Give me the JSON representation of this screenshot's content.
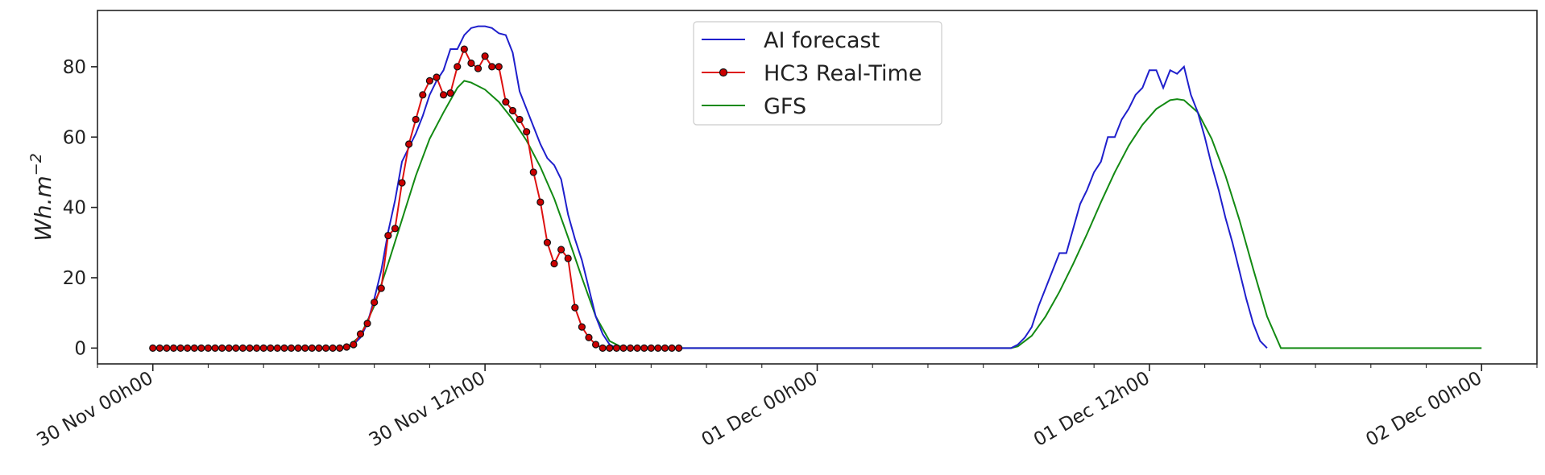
{
  "chart_data": {
    "type": "line",
    "title": "",
    "xlabel": "",
    "ylabel": "Wh.m",
    "ylabel_superscript": "−2",
    "x_unit": "hour",
    "x_range": [
      "29 Nov 22h00",
      "02 Dec 02h00"
    ],
    "ylim": [
      -4.5,
      96
    ],
    "yticks": [
      0,
      20,
      40,
      60,
      80
    ],
    "xticks": [
      {
        "x": "30 Nov 00h00",
        "label": "30 Nov 00h00"
      },
      {
        "x": "30 Nov 12h00",
        "label": "30 Nov 12h00"
      },
      {
        "x": "01 Dec 00h00",
        "label": "01 Dec 00h00"
      },
      {
        "x": "01 Dec 12h00",
        "label": "01 Dec 12h00"
      },
      {
        "x": "02 Dec 00h00",
        "label": "02 Dec 00h00"
      }
    ],
    "grid": false,
    "legend_position": "top-center",
    "series": [
      {
        "name": "AI forecast",
        "color": "#1f1fcc",
        "marker": "none",
        "points": [
          [
            "30 Nov 07h00",
            0
          ],
          [
            "30 Nov 07h15",
            1
          ],
          [
            "30 Nov 07h30",
            3
          ],
          [
            "30 Nov 07h45",
            7
          ],
          [
            "30 Nov 08h00",
            14
          ],
          [
            "30 Nov 08h15",
            22
          ],
          [
            "30 Nov 08h30",
            33
          ],
          [
            "30 Nov 08h45",
            42
          ],
          [
            "30 Nov 09h00",
            53
          ],
          [
            "30 Nov 09h15",
            57
          ],
          [
            "30 Nov 09h30",
            61
          ],
          [
            "30 Nov 09h45",
            66
          ],
          [
            "30 Nov 10h00",
            72
          ],
          [
            "30 Nov 10h15",
            76
          ],
          [
            "30 Nov 10h30",
            79
          ],
          [
            "30 Nov 10h45",
            85
          ],
          [
            "30 Nov 11h00",
            85
          ],
          [
            "30 Nov 11h15",
            89
          ],
          [
            "30 Nov 11h30",
            91
          ],
          [
            "30 Nov 11h45",
            91.5
          ],
          [
            "30 Nov 12h00",
            91.5
          ],
          [
            "30 Nov 12h15",
            91
          ],
          [
            "30 Nov 12h30",
            89.5
          ],
          [
            "30 Nov 12h45",
            89
          ],
          [
            "30 Nov 13h00",
            84
          ],
          [
            "30 Nov 13h15",
            73
          ],
          [
            "30 Nov 13h30",
            68
          ],
          [
            "30 Nov 13h45",
            63
          ],
          [
            "30 Nov 14h00",
            58
          ],
          [
            "30 Nov 14h15",
            54
          ],
          [
            "30 Nov 14h30",
            52
          ],
          [
            "30 Nov 14h45",
            48
          ],
          [
            "30 Nov 15h00",
            38
          ],
          [
            "30 Nov 15h15",
            31
          ],
          [
            "30 Nov 15h30",
            25
          ],
          [
            "30 Nov 15h45",
            17
          ],
          [
            "30 Nov 16h00",
            9
          ],
          [
            "30 Nov 16h15",
            4
          ],
          [
            "30 Nov 16h30",
            1
          ],
          [
            "30 Nov 16h45",
            0
          ],
          [
            "01 Dec 07h00",
            0
          ],
          [
            "01 Dec 07h15",
            1
          ],
          [
            "01 Dec 07h30",
            3
          ],
          [
            "01 Dec 07h45",
            6
          ],
          [
            "01 Dec 08h00",
            12
          ],
          [
            "01 Dec 08h15",
            17
          ],
          [
            "01 Dec 08h30",
            22
          ],
          [
            "01 Dec 08h45",
            27
          ],
          [
            "01 Dec 09h00",
            27
          ],
          [
            "01 Dec 09h15",
            34
          ],
          [
            "01 Dec 09h30",
            41
          ],
          [
            "01 Dec 09h45",
            45
          ],
          [
            "01 Dec 10h00",
            50
          ],
          [
            "01 Dec 10h15",
            53
          ],
          [
            "01 Dec 10h30",
            60
          ],
          [
            "01 Dec 10h45",
            60
          ],
          [
            "01 Dec 11h00",
            65
          ],
          [
            "01 Dec 11h15",
            68
          ],
          [
            "01 Dec 11h30",
            72
          ],
          [
            "01 Dec 11h45",
            74
          ],
          [
            "01 Dec 12h00",
            79
          ],
          [
            "01 Dec 12h15",
            79
          ],
          [
            "01 Dec 12h30",
            74
          ],
          [
            "01 Dec 12h45",
            79
          ],
          [
            "01 Dec 13h00",
            78
          ],
          [
            "01 Dec 13h15",
            80
          ],
          [
            "01 Dec 13h30",
            72
          ],
          [
            "01 Dec 13h45",
            67
          ],
          [
            "01 Dec 14h00",
            60
          ],
          [
            "01 Dec 14h15",
            52
          ],
          [
            "01 Dec 14h30",
            45
          ],
          [
            "01 Dec 14h45",
            37
          ],
          [
            "01 Dec 15h00",
            30
          ],
          [
            "01 Dec 15h15",
            22
          ],
          [
            "01 Dec 15h30",
            14
          ],
          [
            "01 Dec 15h45",
            7
          ],
          [
            "01 Dec 16h00",
            2
          ],
          [
            "01 Dec 16h15",
            0
          ]
        ]
      },
      {
        "name": "HC3 Real-Time",
        "color": "#dd1111",
        "marker": "circle",
        "marker_face": "#cc0000",
        "marker_edge": "#111111",
        "points": [
          [
            "30 Nov 00h00",
            0
          ],
          [
            "30 Nov 00h15",
            0
          ],
          [
            "30 Nov 00h30",
            0
          ],
          [
            "30 Nov 00h45",
            0
          ],
          [
            "30 Nov 01h00",
            0
          ],
          [
            "30 Nov 01h15",
            0
          ],
          [
            "30 Nov 01h30",
            0
          ],
          [
            "30 Nov 01h45",
            0
          ],
          [
            "30 Nov 02h00",
            0
          ],
          [
            "30 Nov 02h15",
            0
          ],
          [
            "30 Nov 02h30",
            0
          ],
          [
            "30 Nov 02h45",
            0
          ],
          [
            "30 Nov 03h00",
            0
          ],
          [
            "30 Nov 03h15",
            0
          ],
          [
            "30 Nov 03h30",
            0
          ],
          [
            "30 Nov 03h45",
            0
          ],
          [
            "30 Nov 04h00",
            0
          ],
          [
            "30 Nov 04h15",
            0
          ],
          [
            "30 Nov 04h30",
            0
          ],
          [
            "30 Nov 04h45",
            0
          ],
          [
            "30 Nov 05h00",
            0
          ],
          [
            "30 Nov 05h15",
            0
          ],
          [
            "30 Nov 05h30",
            0
          ],
          [
            "30 Nov 05h45",
            0
          ],
          [
            "30 Nov 06h00",
            0
          ],
          [
            "30 Nov 06h15",
            0
          ],
          [
            "30 Nov 06h30",
            0
          ],
          [
            "30 Nov 06h45",
            0
          ],
          [
            "30 Nov 07h00",
            0.3
          ],
          [
            "30 Nov 07h15",
            1
          ],
          [
            "30 Nov 07h30",
            4
          ],
          [
            "30 Nov 07h45",
            7
          ],
          [
            "30 Nov 08h00",
            13
          ],
          [
            "30 Nov 08h15",
            17
          ],
          [
            "30 Nov 08h30",
            32
          ],
          [
            "30 Nov 08h45",
            34
          ],
          [
            "30 Nov 09h00",
            47
          ],
          [
            "30 Nov 09h15",
            58
          ],
          [
            "30 Nov 09h30",
            65
          ],
          [
            "30 Nov 09h45",
            72
          ],
          [
            "30 Nov 10h00",
            76
          ],
          [
            "30 Nov 10h15",
            77
          ],
          [
            "30 Nov 10h30",
            72
          ],
          [
            "30 Nov 10h45",
            72.5
          ],
          [
            "30 Nov 11h00",
            80
          ],
          [
            "30 Nov 11h15",
            85
          ],
          [
            "30 Nov 11h30",
            81
          ],
          [
            "30 Nov 11h45",
            79.5
          ],
          [
            "30 Nov 12h00",
            83
          ],
          [
            "30 Nov 12h15",
            80
          ],
          [
            "30 Nov 12h30",
            80
          ],
          [
            "30 Nov 12h45",
            70
          ],
          [
            "30 Nov 13h00",
            67.5
          ],
          [
            "30 Nov 13h15",
            65
          ],
          [
            "30 Nov 13h30",
            61.5
          ],
          [
            "30 Nov 13h45",
            50
          ],
          [
            "30 Nov 14h00",
            41.5
          ],
          [
            "30 Nov 14h15",
            30
          ],
          [
            "30 Nov 14h30",
            24
          ],
          [
            "30 Nov 14h45",
            28
          ],
          [
            "30 Nov 15h00",
            25.5
          ],
          [
            "30 Nov 15h15",
            11.5
          ],
          [
            "30 Nov 15h30",
            6
          ],
          [
            "30 Nov 15h45",
            3
          ],
          [
            "30 Nov 16h00",
            1
          ],
          [
            "30 Nov 16h15",
            0
          ],
          [
            "30 Nov 16h30",
            0
          ],
          [
            "30 Nov 16h45",
            0
          ],
          [
            "30 Nov 17h00",
            0
          ],
          [
            "30 Nov 17h15",
            0
          ],
          [
            "30 Nov 17h30",
            0
          ],
          [
            "30 Nov 17h45",
            0
          ],
          [
            "30 Nov 18h00",
            0
          ],
          [
            "30 Nov 18h15",
            0
          ],
          [
            "30 Nov 18h30",
            0
          ],
          [
            "30 Nov 18h45",
            0
          ],
          [
            "30 Nov 19h00",
            0
          ]
        ]
      },
      {
        "name": "GFS",
        "color": "#138a13",
        "marker": "none",
        "points": [
          [
            "30 Nov 19h00",
            0
          ],
          [
            "30 Nov 21h00",
            0
          ],
          [
            "30 Nov 23h00",
            0
          ],
          [
            "01 Dec 01h00",
            0
          ],
          [
            "01 Dec 03h00",
            0
          ],
          [
            "01 Dec 05h00",
            0
          ],
          [
            "01 Dec 07h00",
            0
          ],
          [
            "01 Dec 07h15",
            0.5
          ],
          [
            "01 Dec 07h45",
            3.5
          ],
          [
            "01 Dec 08h15",
            9
          ],
          [
            "01 Dec 08h45",
            16
          ],
          [
            "01 Dec 09h15",
            24
          ],
          [
            "01 Dec 09h45",
            32.5
          ],
          [
            "01 Dec 10h15",
            41.5
          ],
          [
            "01 Dec 10h45",
            50
          ],
          [
            "01 Dec 11h15",
            57.5
          ],
          [
            "01 Dec 11h45",
            63.5
          ],
          [
            "01 Dec 12h15",
            68
          ],
          [
            "01 Dec 12h45",
            70.5
          ],
          [
            "01 Dec 13h00",
            70.8
          ],
          [
            "01 Dec 13h15",
            70.5
          ],
          [
            "01 Dec 13h45",
            67
          ],
          [
            "01 Dec 14h15",
            59.5
          ],
          [
            "01 Dec 14h45",
            49
          ],
          [
            "01 Dec 15h15",
            36.5
          ],
          [
            "01 Dec 15h45",
            22.5
          ],
          [
            "01 Dec 16h15",
            9
          ],
          [
            "01 Dec 16h45",
            0
          ],
          [
            "01 Dec 18h00",
            0
          ],
          [
            "01 Dec 20h00",
            0
          ],
          [
            "01 Dec 22h00",
            0
          ],
          [
            "02 Dec 00h00",
            0
          ]
        ],
        "first_day_points": [
          [
            "30 Nov 07h00",
            0
          ],
          [
            "30 Nov 07h30",
            3.5
          ],
          [
            "30 Nov 08h00",
            12
          ],
          [
            "30 Nov 08h30",
            24
          ],
          [
            "30 Nov 09h00",
            36.5
          ],
          [
            "30 Nov 09h30",
            49
          ],
          [
            "30 Nov 10h00",
            59.5
          ],
          [
            "30 Nov 10h30",
            67
          ],
          [
            "30 Nov 11h00",
            74
          ],
          [
            "30 Nov 11h15",
            76
          ],
          [
            "30 Nov 11h30",
            75.5
          ],
          [
            "30 Nov 12h00",
            73.5
          ],
          [
            "30 Nov 12h30",
            70
          ],
          [
            "30 Nov 13h00",
            65
          ],
          [
            "30 Nov 13h30",
            59
          ],
          [
            "30 Nov 14h00",
            51.5
          ],
          [
            "30 Nov 14h30",
            42.5
          ],
          [
            "30 Nov 15h00",
            31.5
          ],
          [
            "30 Nov 15h30",
            20
          ],
          [
            "30 Nov 16h00",
            9
          ],
          [
            "30 Nov 16h30",
            2
          ],
          [
            "30 Nov 17h00",
            0
          ],
          [
            "30 Nov 19h00",
            0
          ]
        ]
      }
    ]
  }
}
